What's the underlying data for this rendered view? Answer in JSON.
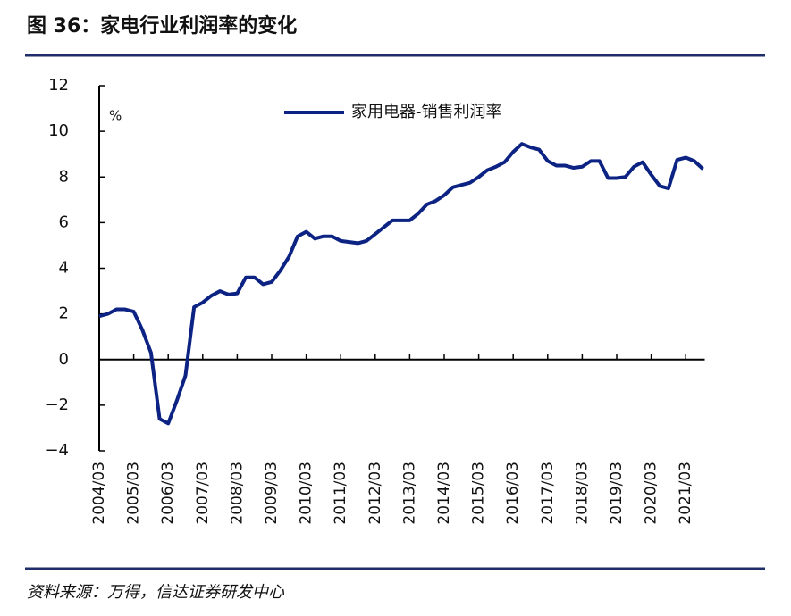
{
  "chart_data": {
    "type": "line",
    "title": "图 36：家电行业利润率的变化",
    "source": "资料来源：万得，信达证券研发中心",
    "y_unit": "%",
    "legend": "top",
    "categories": [
      "2004/03",
      null,
      null,
      null,
      "2005/03",
      null,
      null,
      null,
      "2006/03",
      null,
      null,
      null,
      "2007/03",
      null,
      null,
      null,
      "2008/03",
      null,
      null,
      null,
      "2009/03",
      null,
      null,
      null,
      "2010/03",
      null,
      null,
      null,
      "2011/03",
      null,
      null,
      null,
      "2012/03",
      null,
      null,
      null,
      "2013/03",
      null,
      null,
      null,
      "2014/03",
      null,
      null,
      null,
      "2015/03",
      null,
      null,
      null,
      "2016/03",
      null,
      null,
      null,
      "2017/03",
      null,
      null,
      null,
      "2018/03",
      null,
      null,
      null,
      "2019/03",
      null,
      null,
      null,
      "2020/03",
      null,
      null,
      null,
      "2021/03",
      null,
      null
    ],
    "series": [
      {
        "name": "家用电器-销售利润率",
        "color": "#0c2383",
        "values": [
          1.9,
          2.0,
          2.2,
          2.2,
          2.1,
          1.3,
          0.3,
          -2.6,
          -2.8,
          -1.8,
          -0.7,
          2.3,
          2.5,
          2.8,
          3.0,
          2.85,
          2.9,
          3.6,
          3.6,
          3.3,
          3.4,
          3.9,
          4.5,
          5.4,
          5.6,
          5.3,
          5.4,
          5.4,
          5.2,
          5.15,
          5.1,
          5.2,
          5.5,
          5.8,
          6.1,
          6.1,
          6.1,
          6.4,
          6.8,
          6.95,
          7.2,
          7.55,
          7.65,
          7.75,
          8.0,
          8.3,
          8.45,
          8.65,
          9.1,
          9.45,
          9.3,
          9.2,
          8.7,
          8.5,
          8.5,
          8.4,
          8.45,
          8.7,
          8.7,
          7.95,
          7.95,
          8.0,
          8.45,
          8.65,
          8.1,
          7.6,
          7.5,
          8.75,
          8.85,
          8.7,
          8.35
        ]
      }
    ],
    "ylim": [
      -4,
      12
    ],
    "yticks": [
      {
        "value": -4,
        "label": "−4"
      },
      {
        "value": -2,
        "label": "−2"
      },
      0,
      2,
      4,
      6,
      8,
      10,
      12
    ]
  }
}
